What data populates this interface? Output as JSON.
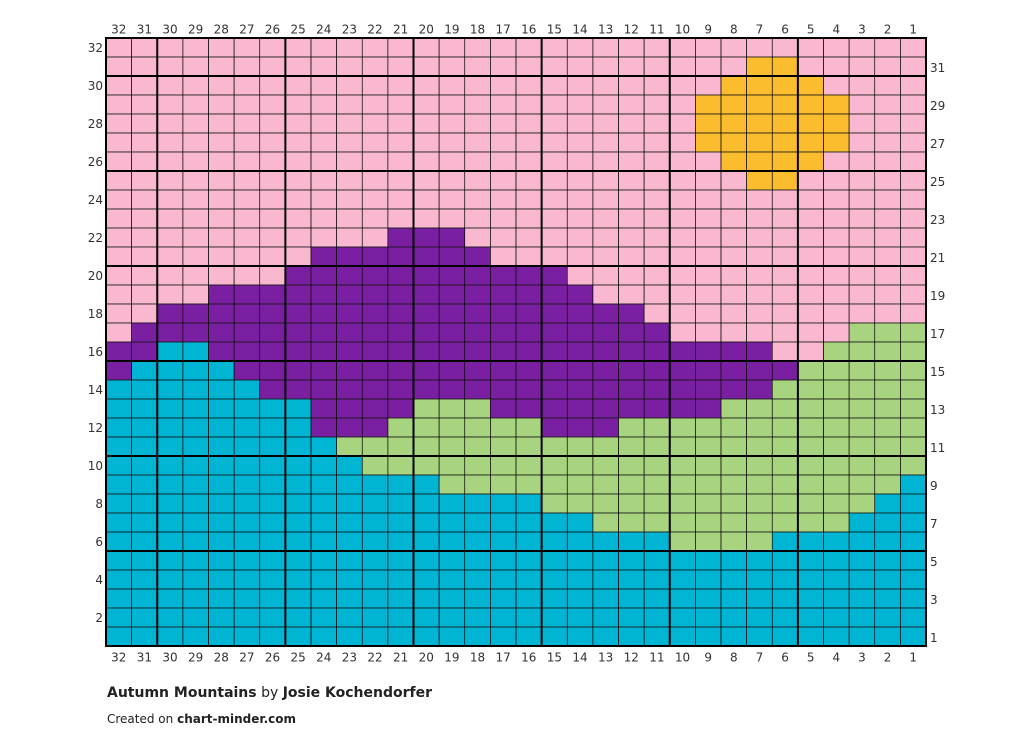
{
  "grid_chart": {
    "column_numbers": [
      32,
      31,
      30,
      29,
      28,
      27,
      26,
      25,
      24,
      23,
      22,
      21,
      20,
      19,
      18,
      17,
      16,
      15,
      14,
      13,
      12,
      11,
      10,
      9,
      8,
      7,
      6,
      5,
      4,
      3,
      2,
      1
    ],
    "row_numbers": [
      32,
      31,
      30,
      29,
      28,
      27,
      26,
      25,
      24,
      23,
      22,
      21,
      20,
      19,
      18,
      17,
      16,
      15,
      14,
      13,
      12,
      11,
      10,
      9,
      8,
      7,
      6,
      5,
      4,
      3,
      2,
      1
    ],
    "footer": {
      "title": "Autumn Mountains",
      "by": "by",
      "author": "Josie Kochendorfer",
      "created_on": "Created on",
      "site": "chart-minder.com"
    }
  }
}
